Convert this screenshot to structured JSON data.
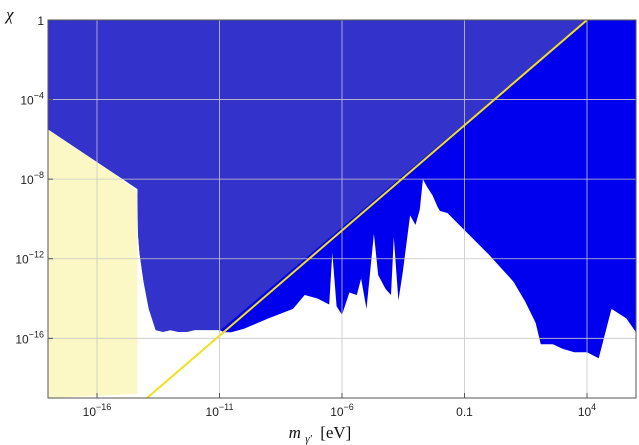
{
  "chart_data": {
    "type": "area",
    "ylabel": "χ",
    "xlabel": {
      "main": "m",
      "sub": "γ′",
      "unit": "[eV]"
    },
    "xscale": "log10",
    "yscale": "log10",
    "xlim": [
      1e-18,
      1000000.0
    ],
    "ylim": [
      1e-19,
      1
    ],
    "grid": true,
    "xticks": [
      {
        "value": 1e-16,
        "base": "10",
        "exp": "−16"
      },
      {
        "value": 1e-11,
        "base": "10",
        "exp": "−11"
      },
      {
        "value": 1e-06,
        "base": "10",
        "exp": "−6"
      },
      {
        "value": 0.1,
        "base": "0.1",
        "exp": ""
      },
      {
        "value": 10000.0,
        "base": "10",
        "exp": "4"
      }
    ],
    "yticks": [
      {
        "value": 1,
        "base": "1",
        "exp": ""
      },
      {
        "value": 0.0001,
        "base": "10",
        "exp": "−4"
      },
      {
        "value": 1e-08,
        "base": "10",
        "exp": "−8"
      },
      {
        "value": 1e-12,
        "base": "10",
        "exp": "−12"
      },
      {
        "value": 1e-16,
        "base": "10",
        "exp": "−16"
      }
    ],
    "colors": {
      "dark_region": "#3333cc",
      "bright_region": "#0000ee",
      "light_region": "#fbf8c6",
      "diagonal_line": "#f0e020",
      "grid": "#c8c8c8",
      "frame": "#555555"
    },
    "light_region": [
      [
        1e-18,
        1e-19
      ],
      [
        1e-18,
        4e-06
      ],
      [
        1e-16,
        1e-07
      ],
      [
        4e-15,
        2.5e-09
      ],
      [
        4.5e-15,
        1.6e-09
      ],
      [
        4.5e-15,
        1.6e-19
      ]
    ],
    "excluded_region": [
      [
        1e-18,
        3.2e-06
      ],
      [
        4.5e-15,
        3.2e-09
      ],
      [
        4.7e-15,
        1.8e-11
      ],
      [
        5.5e-15,
        1.8e-12
      ],
      [
        8e-15,
        7e-14
      ],
      [
        1.3e-14,
        3e-15
      ],
      [
        2.5e-14,
        2.6e-16
      ],
      [
        5e-14,
        2.1e-16
      ],
      [
        1e-13,
        2.6e-16
      ],
      [
        2e-13,
        2.1e-16
      ],
      [
        5e-13,
        2.1e-16
      ],
      [
        1e-12,
        1.6e-15
      ],
      [
        2e-12,
        1e-15
      ],
      [
        4e-12,
        6e-16
      ],
      [
        8e-12,
        3e-16
      ],
      [
        1.5e-11,
        2e-16
      ],
      [
        3e-11,
        2e-16
      ],
      [
        1e-10,
        3e-16
      ],
      [
        1e-09,
        1e-15
      ],
      [
        1e-08,
        3e-15
      ],
      [
        3e-08,
        1.5e-14
      ],
      [
        1e-07,
        1e-14
      ],
      [
        3e-07,
        5e-15
      ],
      [
        4e-07,
        2e-12
      ],
      [
        6e-07,
        4e-15
      ],
      [
        1e-06,
        1.5e-15
      ],
      [
        2e-06,
        2e-14
      ],
      [
        4e-06,
        1.5e-14
      ],
      [
        6e-06,
        1e-13
      ],
      [
        1e-05,
        3e-15
      ],
      [
        2e-05,
        1.8e-11
      ],
      [
        3e-05,
        1.5e-13
      ],
      [
        6e-05,
        3e-14
      ],
      [
        0.0001,
        1.5e-14
      ],
      [
        0.00013,
        1.2e-11
      ],
      [
        0.0002,
        8e-15
      ],
      [
        0.0003,
        2e-13
      ],
      [
        0.0006,
        1.5e-10
      ],
      [
        0.001,
        5e-11
      ],
      [
        0.0015,
        3e-10
      ],
      [
        0.002,
        1e-08
      ],
      [
        0.003,
        4e-09
      ],
      [
        0.005,
        1.5e-09
      ],
      [
        0.008,
        4e-10
      ],
      [
        0.01,
        2.5e-10
      ],
      [
        0.02,
        2e-10
      ],
      [
        1,
        1.6e-12
      ],
      [
        10,
        7e-14
      ],
      [
        30,
        7e-15
      ],
      [
        80,
        6e-16
      ],
      [
        130,
        5e-17
      ],
      [
        400,
        5e-17
      ],
      [
        1000.0,
        3e-17
      ],
      [
        3000.0,
        2e-17
      ],
      [
        10000.0,
        2e-17
      ],
      [
        30000.0,
        1e-17
      ],
      [
        100000.0,
        3e-15
      ],
      [
        400000.0,
        1e-15
      ],
      [
        1000000.0,
        2e-16
      ],
      [
        1000000.0,
        1
      ],
      [
        1e-18,
        1
      ]
    ],
    "bright_band": [
      [
        1e-18,
        1
      ],
      [
        1000000.0,
        1
      ],
      [
        1000000.0,
        0.0001
      ],
      [
        5000.0,
        1
      ],
      [
        1e-12,
        3e-16
      ],
      [
        1e-11,
        1.5e-16
      ],
      [
        3e-11,
        1e-16
      ],
      [
        2e-11,
        1.8e-16
      ],
      [
        1e-12,
        3e-16
      ]
    ],
    "diagonal_line": [
      [
        1.1e-14,
        1e-19
      ],
      [
        10000.0,
        1
      ]
    ]
  }
}
